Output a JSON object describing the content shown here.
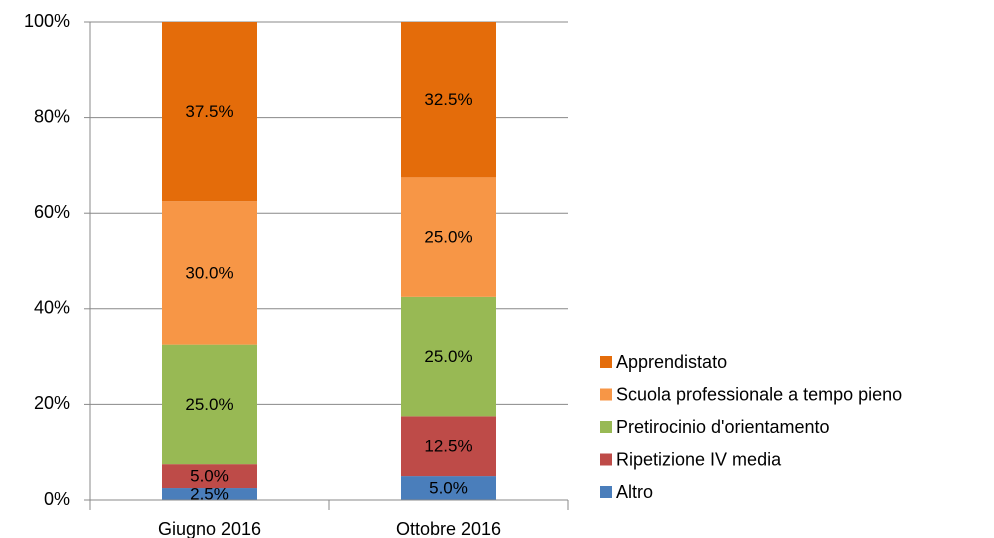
{
  "chart_data": {
    "type": "stacked_bar",
    "categories": [
      "Giugno 2016",
      "Ottobre 2016"
    ],
    "series": [
      {
        "name": "Altro",
        "color": "#4a7ebb",
        "values": [
          2.5,
          5.0
        ],
        "value_labels": [
          "2.5%",
          "5.0%"
        ]
      },
      {
        "name": "Ripetizione IV media",
        "color": "#be4b48",
        "values": [
          5.0,
          12.5
        ],
        "value_labels": [
          "5.0%",
          "12.5%"
        ]
      },
      {
        "name": "Pretirocinio d'orientamento",
        "color": "#98b954",
        "values": [
          25.0,
          25.0
        ],
        "value_labels": [
          "25.0%",
          "25.0%"
        ]
      },
      {
        "name": "Scuola professionale a tempo pieno",
        "color": "#f79646",
        "values": [
          30.0,
          25.0
        ],
        "value_labels": [
          "30.0%",
          "25.0%"
        ]
      },
      {
        "name": "Apprendistato",
        "color": "#e46c0a",
        "values": [
          37.5,
          32.5
        ],
        "value_labels": [
          "37.5%",
          "32.5%"
        ]
      }
    ],
    "ylim": [
      0,
      100
    ],
    "yticks": [
      {
        "value": 0,
        "label": "0%"
      },
      {
        "value": 20,
        "label": "20%"
      },
      {
        "value": 40,
        "label": "40%"
      },
      {
        "value": 60,
        "label": "60%"
      },
      {
        "value": 80,
        "label": "80%"
      },
      {
        "value": 100,
        "label": "100%"
      }
    ],
    "grid": true,
    "legend": "right"
  }
}
